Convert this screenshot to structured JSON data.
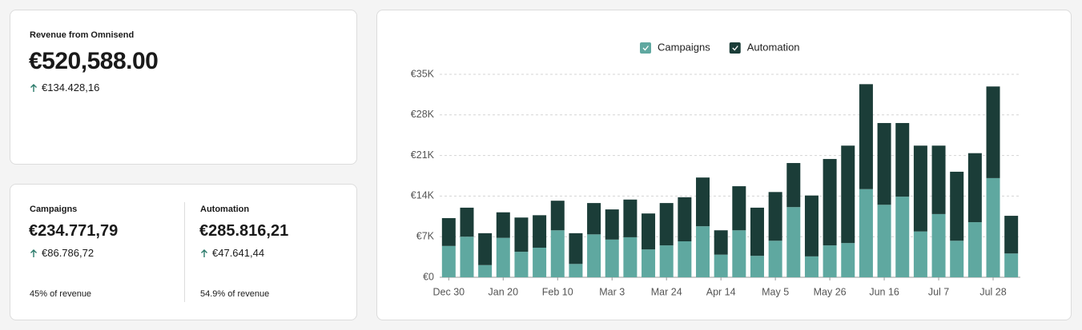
{
  "revenue_card": {
    "label": "Revenue from Omnisend",
    "value": "€520,588.00",
    "change": "€134.428,16"
  },
  "breakdown": [
    {
      "label": "Campaigns",
      "value": "€234.771,79",
      "change": "€86.786,72",
      "share": "45% of revenue"
    },
    {
      "label": "Automation",
      "value": "€285.816,21",
      "change": "€47.641,44",
      "share": "54.9% of revenue"
    }
  ],
  "chart_data": {
    "type": "stacked_bar",
    "categories": [
      "Dec 30",
      null,
      null,
      "Jan 20",
      null,
      null,
      "Feb 10",
      null,
      null,
      "Mar 3",
      null,
      null,
      "Mar 24",
      null,
      null,
      "Apr 14",
      null,
      null,
      "May 5",
      null,
      null,
      "May 26",
      null,
      null,
      "Jun 16",
      null,
      null,
      "Jul 7",
      null,
      null,
      "Jul 28",
      null
    ],
    "series": [
      {
        "name": "Campaigns",
        "color": "#5fa8a0",
        "values": [
          5400,
          7000,
          2100,
          6800,
          4400,
          5100,
          8100,
          2300,
          7400,
          6500,
          6900,
          4800,
          5500,
          6200,
          8800,
          3900,
          8100,
          3700,
          6300,
          12100,
          3600,
          5500,
          5900,
          15200,
          12500,
          13900,
          7900,
          10900,
          6300,
          9500,
          17100,
          4100
        ]
      },
      {
        "name": "Automation",
        "color": "#1b3d38",
        "values": [
          4800,
          5000,
          5500,
          4400,
          5900,
          5600,
          5100,
          5300,
          5400,
          5200,
          6500,
          6200,
          7300,
          7600,
          8400,
          4200,
          7600,
          8300,
          8400,
          7600,
          10500,
          14900,
          16800,
          18100,
          14100,
          12700,
          14800,
          11800,
          11900,
          11900,
          15800,
          6500
        ]
      }
    ],
    "ylim": [
      0,
      35000
    ],
    "yticks": [
      {
        "value": 0,
        "label": "€0"
      },
      {
        "value": 7000,
        "label": "€7K"
      },
      {
        "value": 14000,
        "label": "€14K"
      },
      {
        "value": 21000,
        "label": "€21K"
      },
      {
        "value": 28000,
        "label": "€28K"
      },
      {
        "value": 35000,
        "label": "€35K"
      }
    ],
    "grid": true,
    "legend": "top"
  }
}
